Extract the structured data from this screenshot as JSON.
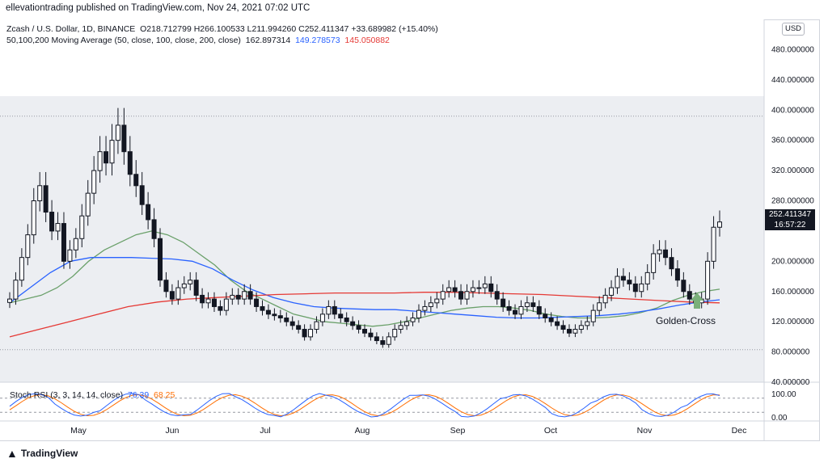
{
  "header": {
    "published_by": "ellevationtrading published on TradingView.com, Nov 24, 2021 07:02 UTC"
  },
  "legend": {
    "symbol": "Zcash / U.S. Dollar, 1D, BINANCE",
    "ohlc": "O218.712799  H266.100533  L211.994260  C252.411347  +33.689982 (+15.40%)",
    "ma_label": "50,100,200 Moving Average (50, close, 100, close, 200, close)",
    "ma50": "162.897314",
    "ma100": "149.278573",
    "ma200": "145.050882"
  },
  "currency_button": "USD",
  "last_price_tag": {
    "price": "252.411347",
    "countdown": "16:57:22"
  },
  "annotation": "Golden-Cross",
  "rsi_legend": {
    "label": "Stoch RSI (3, 3, 14, 14, close)",
    "k": "76.39",
    "d": "68.25"
  },
  "footer": {
    "brand": "TradingView"
  },
  "colors": {
    "up": "#131722",
    "ma50": "#6aa06a",
    "ma100": "#2962ff",
    "ma200": "#e53935",
    "arrow": "#7ab07a",
    "stoch_k": "#2962ff",
    "stoch_d": "#ff6d00"
  },
  "chart_data": {
    "type": "candlestick",
    "symbol": "ZEC/USD",
    "timeframe": "1D",
    "x_labels": [
      "May",
      "Jun",
      "Jul",
      "Aug",
      "Sep",
      "Oct",
      "Nov",
      "Dec"
    ],
    "y_ticks": [
      "480.000000",
      "440.000000",
      "400.000000",
      "360.000000",
      "320.000000",
      "280.000000",
      "200.000000",
      "160.000000",
      "120.000000",
      "80.000000",
      "40.000000"
    ],
    "ylim": [
      40,
      520
    ],
    "price_series": [
      150,
      175,
      205,
      235,
      280,
      300,
      265,
      240,
      250,
      200,
      215,
      230,
      260,
      290,
      320,
      345,
      330,
      360,
      380,
      345,
      315,
      300,
      275,
      255,
      230,
      175,
      160,
      150,
      165,
      170,
      175,
      155,
      145,
      150,
      140,
      135,
      150,
      155,
      150,
      160,
      150,
      140,
      135,
      130,
      128,
      125,
      120,
      115,
      110,
      100,
      110,
      120,
      130,
      140,
      130,
      125,
      120,
      115,
      110,
      105,
      100,
      95,
      90,
      100,
      110,
      115,
      120,
      125,
      135,
      140,
      145,
      150,
      160,
      165,
      160,
      150,
      160,
      165,
      165,
      170,
      160,
      150,
      140,
      135,
      130,
      140,
      145,
      140,
      130,
      125,
      120,
      115,
      110,
      105,
      110,
      115,
      120,
      135,
      145,
      155,
      165,
      180,
      175,
      170,
      160,
      170,
      185,
      210,
      215,
      205,
      190,
      175,
      160,
      150,
      145,
      150,
      200,
      245,
      252
    ],
    "ma50": [
      145,
      150,
      155,
      165,
      180,
      200,
      215,
      225,
      235,
      240,
      235,
      225,
      210,
      195,
      175,
      160,
      150,
      140,
      130,
      125,
      120,
      118,
      116,
      114,
      116,
      120,
      125,
      130,
      135,
      138,
      140,
      140,
      138,
      135,
      130,
      127,
      125,
      125,
      126,
      128,
      132,
      138,
      148,
      155,
      160,
      163
    ],
    "ma100": [
      145,
      165,
      185,
      200,
      205,
      205,
      205,
      204,
      203,
      200,
      190,
      175,
      162,
      152,
      145,
      140,
      138,
      137,
      136,
      136,
      134,
      132,
      130,
      128,
      126,
      125,
      125,
      126,
      127,
      128,
      130,
      133,
      137,
      142,
      146,
      149
    ],
    "ma200": [
      100,
      110,
      120,
      130,
      140,
      146,
      150,
      152,
      154,
      156,
      157,
      158,
      158,
      158,
      159,
      159,
      158,
      157,
      156,
      154,
      152,
      150,
      148,
      146,
      145
    ],
    "stoch_rsi": {
      "k_last": 76.39,
      "d_last": 68.25,
      "ylim": [
        0,
        100
      ],
      "ticks": [
        "100.00",
        "0.00"
      ]
    },
    "annotations": [
      "Golden-Cross"
    ]
  }
}
